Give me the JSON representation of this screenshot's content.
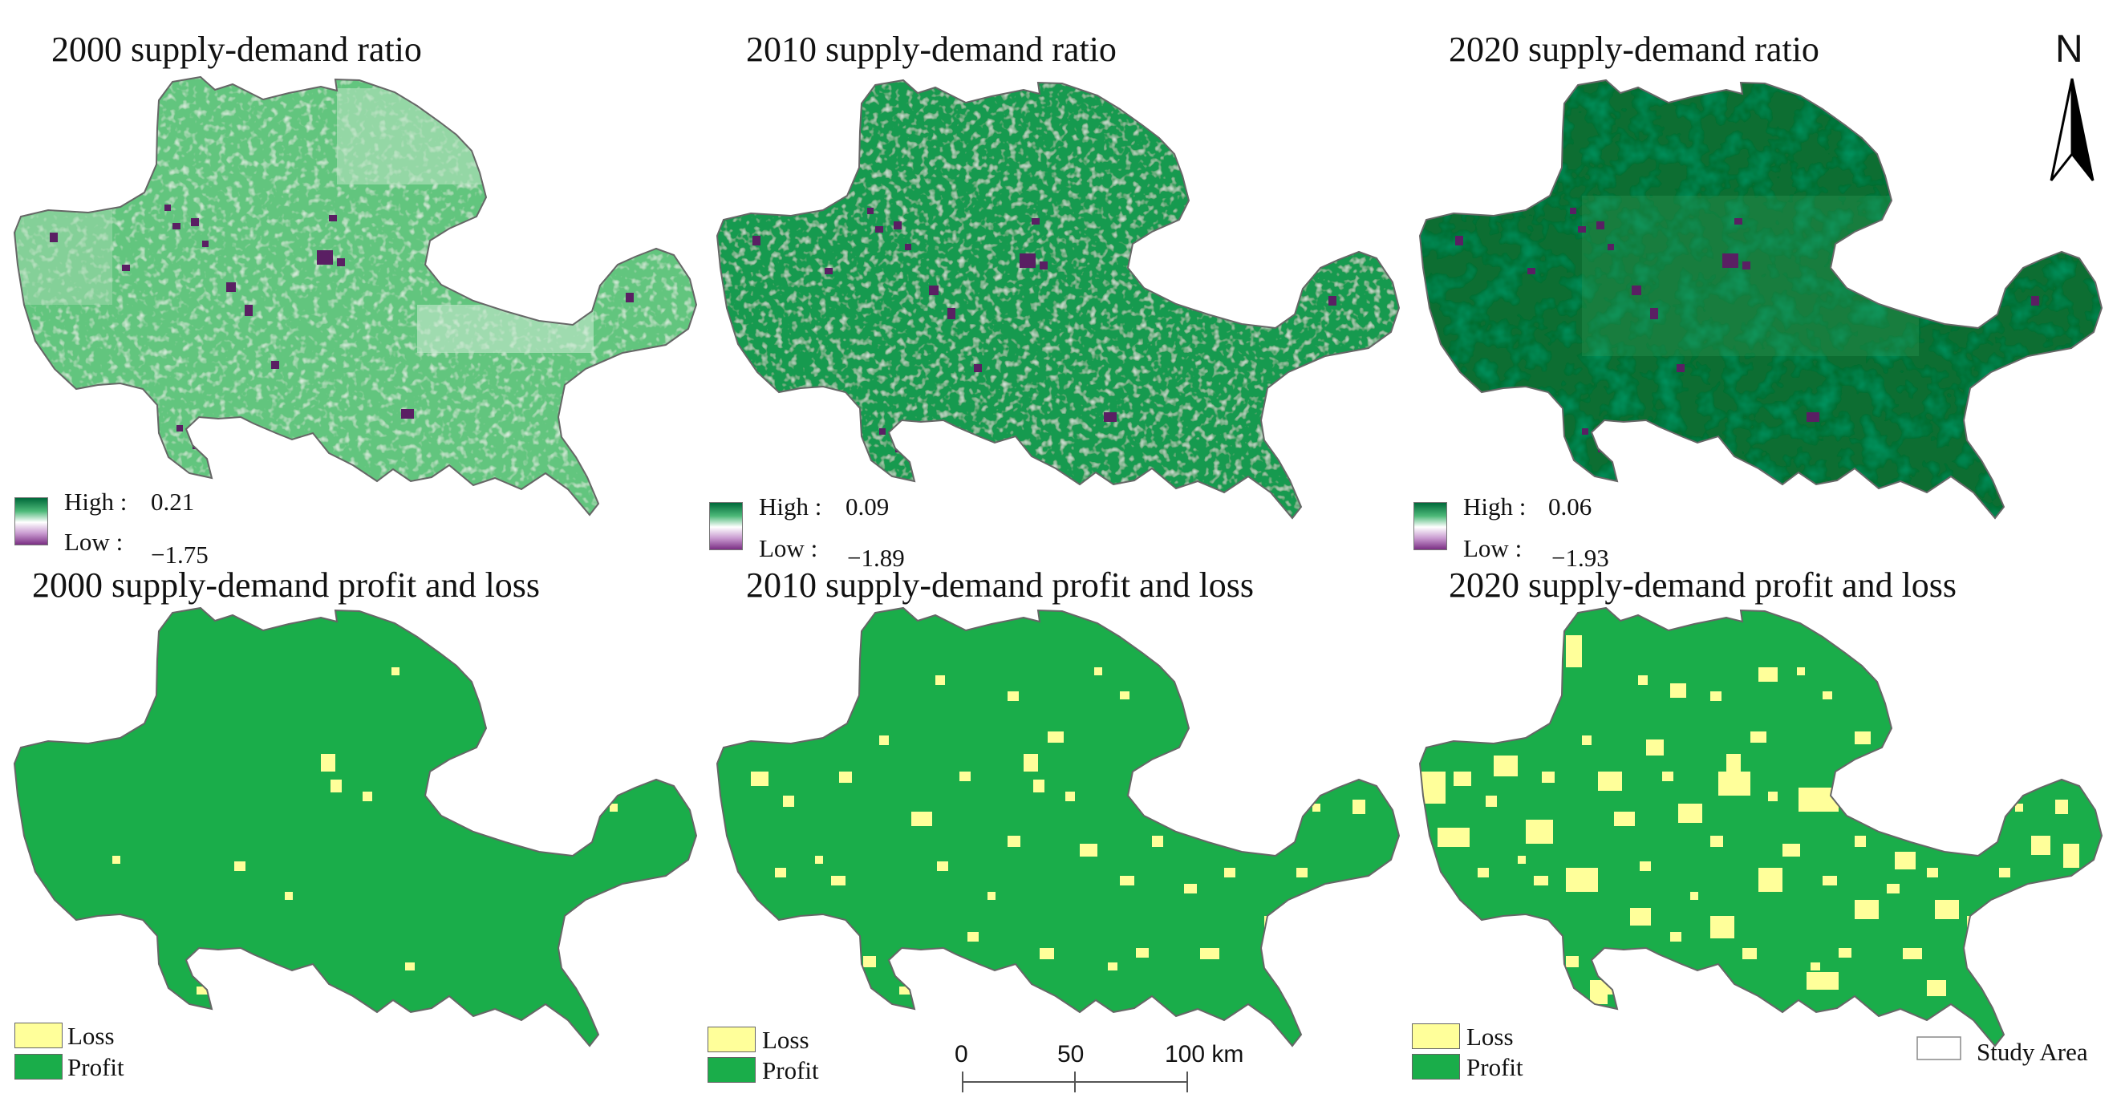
{
  "colors": {
    "profit": "#1aad4a",
    "loss": "#ffff9a",
    "ratio_high": "#00693a",
    "ratio_low": "#7b2f84",
    "boundary": "#666666",
    "ratio_base_2000": "#62c57e",
    "ratio_base_2010": "#199a4f",
    "ratio_base_2020": "#086e33"
  },
  "panels": [
    {
      "title": "2000 supply-demand ratio",
      "high_label": "High :",
      "high_value": "0.21",
      "low_label": "Low :",
      "low_value": "−1.75"
    },
    {
      "title": "2010 supply-demand ratio",
      "high_label": "High :",
      "high_value": "0.09",
      "low_label": "Low :",
      "low_value": "−1.89"
    },
    {
      "title": "2020 supply-demand ratio",
      "high_label": "High :",
      "high_value": "0.06",
      "low_label": "Low :",
      "low_value": "−1.93"
    },
    {
      "title": "2000 supply-demand profit and loss",
      "loss_label": "Loss",
      "profit_label": "Profit"
    },
    {
      "title": "2010 supply-demand profit and loss",
      "loss_label": "Loss",
      "profit_label": "Profit"
    },
    {
      "title": "2020 supply-demand profit and loss",
      "loss_label": "Loss",
      "profit_label": "Profit"
    }
  ],
  "scale_bar": {
    "labels": [
      "0",
      "50",
      "100 km"
    ]
  },
  "north_arrow": {
    "letter": "N",
    "icon": "north-arrow-icon"
  },
  "study_area_label": "Study Area"
}
